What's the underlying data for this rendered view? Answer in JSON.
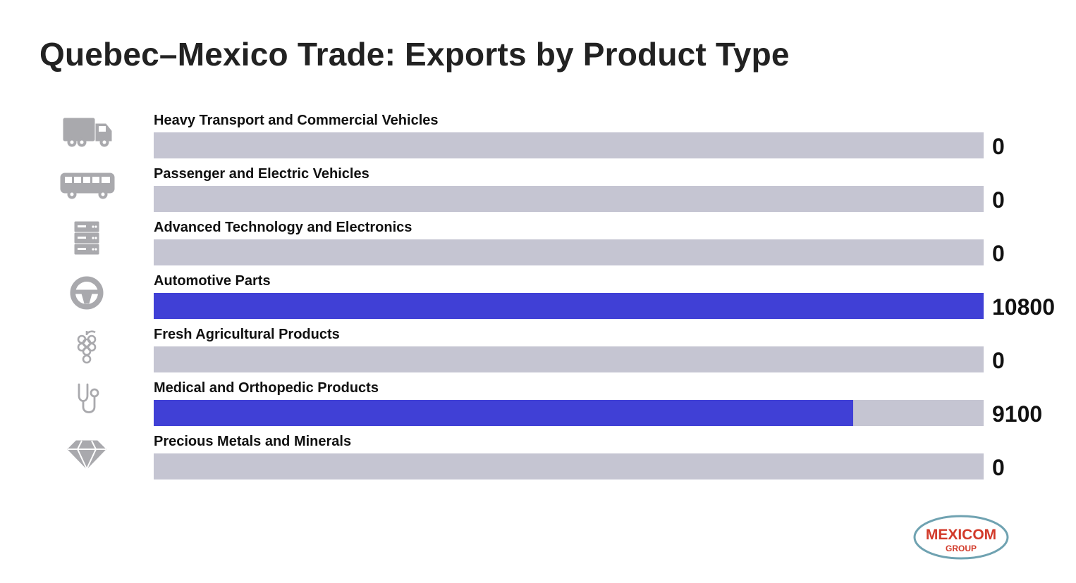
{
  "title": "Quebec–Mexico Trade: Exports by Product Type",
  "colors": {
    "track": "#c5c5d2",
    "fill": "#4040d6",
    "icon": "#a9a9ad",
    "logo_red": "#d23a2a",
    "logo_ring": "#6fa2b1"
  },
  "chart_data": {
    "type": "bar",
    "orientation": "horizontal",
    "categories": [
      "Heavy Transport and Commercial Vehicles",
      "Passenger and Electric Vehicles",
      "Advanced Technology and Electronics",
      "Automotive Parts",
      "Fresh Agricultural Products",
      "Medical and Orthopedic Products",
      "Precious Metals and Minerals"
    ],
    "values": [
      0,
      0,
      0,
      10800,
      0,
      9100,
      0
    ],
    "value_labels": [
      "0",
      "0",
      "0",
      "10800",
      "0",
      "9100",
      "0"
    ],
    "icons": [
      "truck-icon",
      "bus-icon",
      "server-icon",
      "steering-wheel-icon",
      "grapes-icon",
      "stethoscope-icon",
      "diamond-icon"
    ],
    "xlim": [
      0,
      10800
    ],
    "grid": false
  },
  "logo": {
    "line1": "MEXICOM",
    "line2": "GROUP"
  }
}
